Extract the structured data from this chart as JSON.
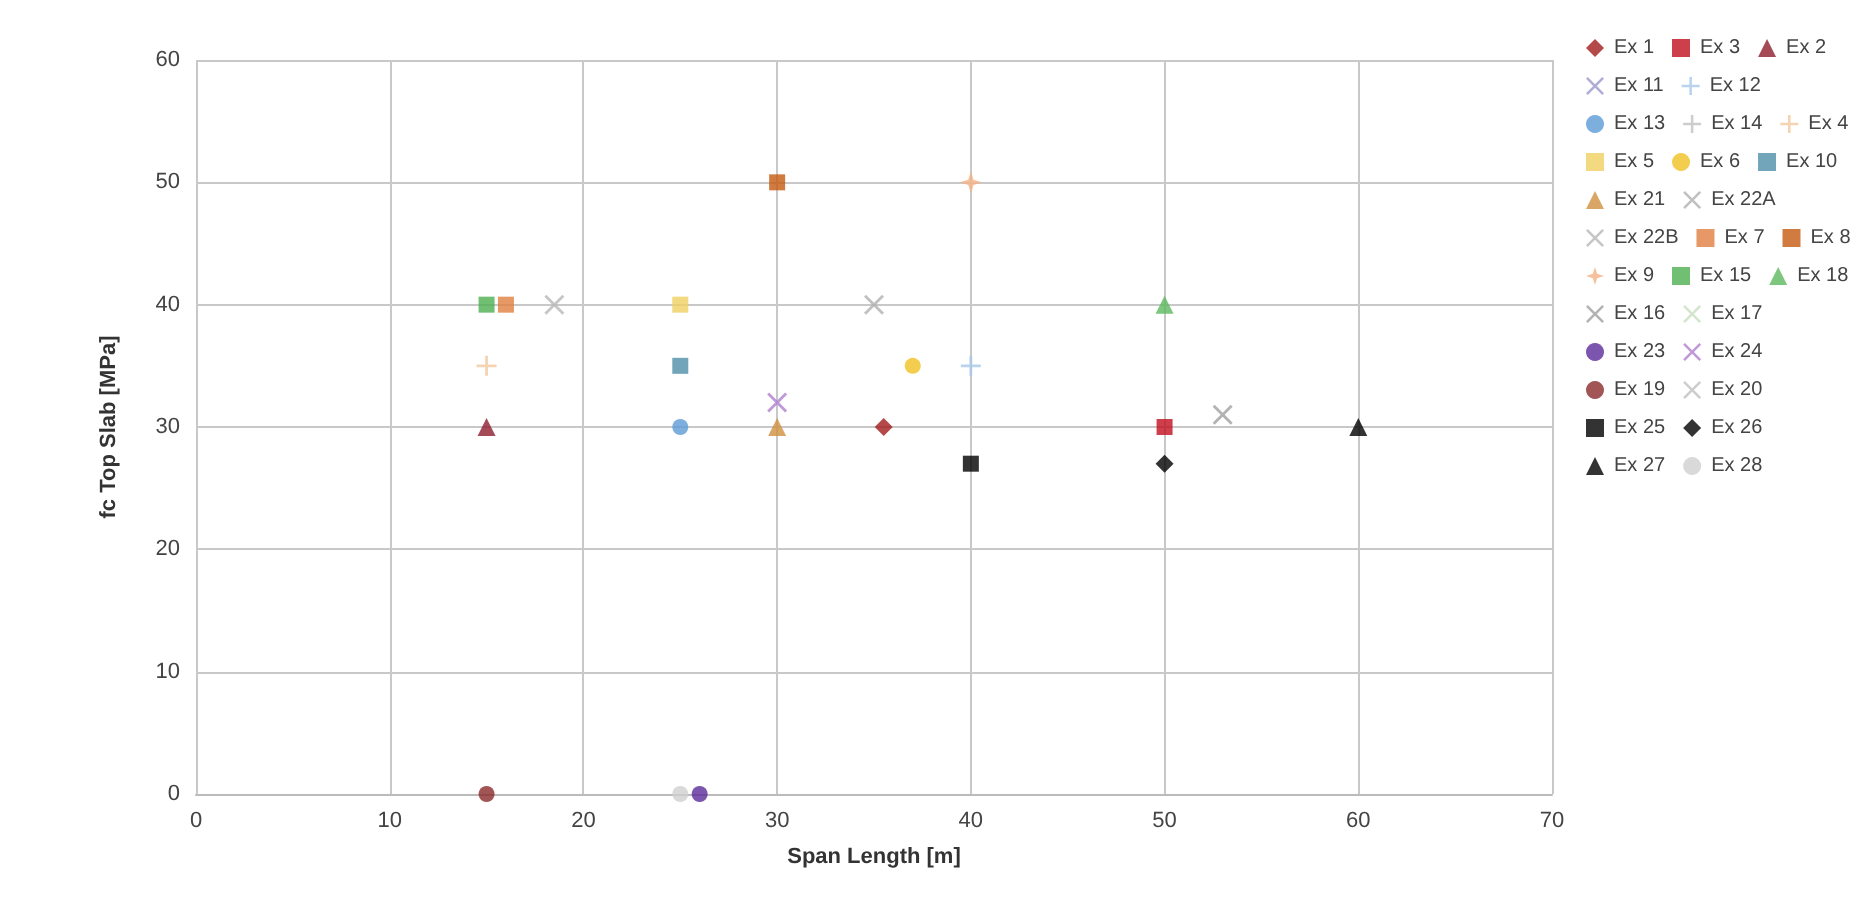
{
  "chart_data": {
    "type": "scatter",
    "xlabel": "Span Length [m]",
    "ylabel": "fc Top Slab [MPa]",
    "xlim": [
      0,
      70
    ],
    "ylim": [
      0,
      60
    ],
    "xticks": [
      0,
      10,
      20,
      30,
      40,
      50,
      60,
      70
    ],
    "yticks": [
      0,
      10,
      20,
      30,
      40,
      50,
      60
    ],
    "grid": true,
    "legend": "right",
    "series": [
      {
        "name": "Ex 1",
        "color": "#a01c1c",
        "marker": "diamond",
        "x": [
          35.5
        ],
        "values": [
          30
        ]
      },
      {
        "name": "Ex 3",
        "color": "#c0101e",
        "marker": "square",
        "x": [
          50
        ],
        "values": [
          30
        ]
      },
      {
        "name": "Ex 2",
        "color": "#8e1e2e",
        "marker": "triangle",
        "x": [
          15
        ],
        "values": [
          30
        ]
      },
      {
        "name": "Ex 11",
        "color": "#9999cc",
        "marker": "cross",
        "x": [
          null
        ],
        "values": [
          null
        ]
      },
      {
        "name": "Ex 12",
        "color": "#a8c8e8",
        "marker": "plus",
        "x": [
          40
        ],
        "values": [
          35
        ]
      },
      {
        "name": "Ex 13",
        "color": "#5b9bd5",
        "marker": "circle",
        "x": [
          25
        ],
        "values": [
          30
        ]
      },
      {
        "name": "Ex 14",
        "color": "#c0c0c0",
        "marker": "plus",
        "x": [
          null
        ],
        "values": [
          null
        ]
      },
      {
        "name": "Ex 4",
        "color": "#f2c9a0",
        "marker": "plus",
        "x": [
          15
        ],
        "values": [
          35
        ]
      },
      {
        "name": "Ex 5",
        "color": "#f0d060",
        "marker": "square",
        "x": [
          25
        ],
        "values": [
          40
        ]
      },
      {
        "name": "Ex 6",
        "color": "#f0c020",
        "marker": "circle",
        "x": [
          37
        ],
        "values": [
          35
        ]
      },
      {
        "name": "Ex 10",
        "color": "#4f8fa8",
        "marker": "square",
        "x": [
          25
        ],
        "values": [
          35
        ]
      },
      {
        "name": "Ex 21",
        "color": "#d09040",
        "marker": "triangle",
        "x": [
          30
        ],
        "values": [
          30
        ]
      },
      {
        "name": "Ex 22A",
        "color": "#b0b0b0",
        "marker": "cross",
        "x": [
          35
        ],
        "values": [
          40
        ]
      },
      {
        "name": "Ex 22B",
        "color": "#b8b8b8",
        "marker": "cross",
        "x": [
          18.5
        ],
        "values": [
          40
        ]
      },
      {
        "name": "Ex 7",
        "color": "#e08040",
        "marker": "square",
        "x": [
          16
        ],
        "values": [
          40
        ]
      },
      {
        "name": "Ex 8",
        "color": "#c55a11",
        "marker": "square",
        "x": [
          30
        ],
        "values": [
          50
        ]
      },
      {
        "name": "Ex 9",
        "color": "#f4b183",
        "marker": "star",
        "x": [
          40
        ],
        "values": [
          50
        ]
      },
      {
        "name": "Ex 15",
        "color": "#4caf50",
        "marker": "square",
        "x": [
          15
        ],
        "values": [
          40
        ]
      },
      {
        "name": "Ex 18",
        "color": "#5cb85c",
        "marker": "triangle",
        "x": [
          50
        ],
        "values": [
          40
        ]
      },
      {
        "name": "Ex 16",
        "color": "#a0a0a0",
        "marker": "cross",
        "x": [
          53
        ],
        "values": [
          31
        ]
      },
      {
        "name": "Ex 17",
        "color": "#c8e0c0",
        "marker": "cross",
        "x": [
          null
        ],
        "values": [
          null
        ]
      },
      {
        "name": "Ex 23",
        "color": "#5b2c9a",
        "marker": "circle",
        "x": [
          26
        ],
        "values": [
          0
        ]
      },
      {
        "name": "Ex 24",
        "color": "#b080d0",
        "marker": "cross",
        "x": [
          30
        ],
        "values": [
          32
        ]
      },
      {
        "name": "Ex 19",
        "color": "#8b2a2a",
        "marker": "circle",
        "x": [
          15
        ],
        "values": [
          0
        ]
      },
      {
        "name": "Ex 20",
        "color": "#c0c0c0",
        "marker": "cross",
        "x": [
          null
        ],
        "values": [
          null
        ]
      },
      {
        "name": "Ex 25",
        "color": "#000000",
        "marker": "square",
        "x": [
          40
        ],
        "values": [
          27
        ]
      },
      {
        "name": "Ex 26",
        "color": "#000000",
        "marker": "diamond",
        "x": [
          50
        ],
        "values": [
          27
        ]
      },
      {
        "name": "Ex 27",
        "color": "#000000",
        "marker": "triangle",
        "x": [
          60
        ],
        "values": [
          30
        ]
      },
      {
        "name": "Ex 28",
        "color": "#d0d0d0",
        "marker": "circle",
        "x": [
          25
        ],
        "values": [
          0
        ]
      }
    ]
  }
}
